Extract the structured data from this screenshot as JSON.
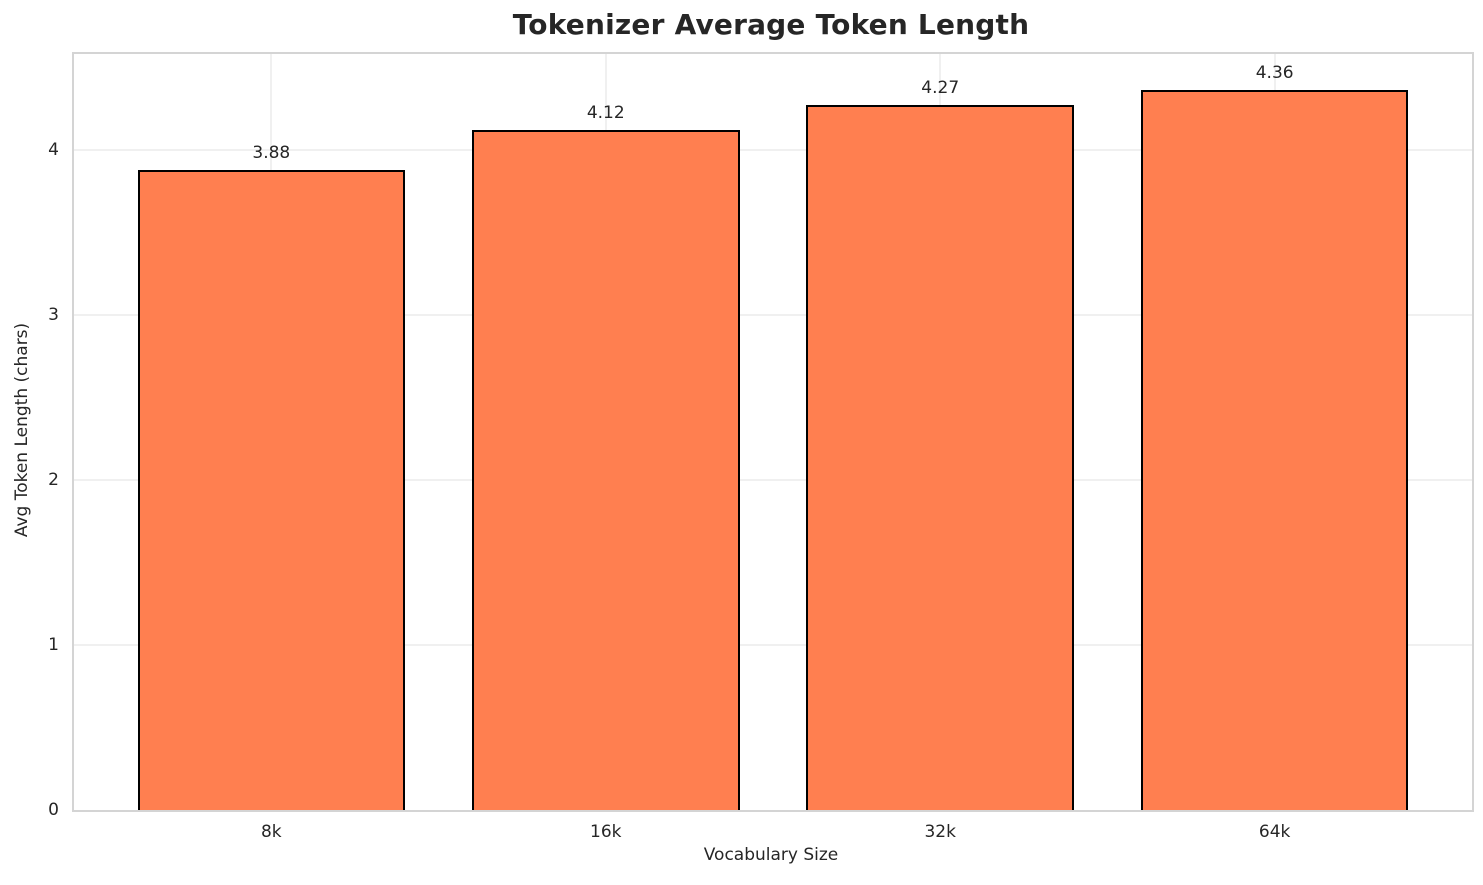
{
  "chart_data": {
    "type": "bar",
    "title": "Tokenizer Average Token Length",
    "xlabel": "Vocabulary Size",
    "ylabel": "Avg Token Length (chars)",
    "categories": [
      "8k",
      "16k",
      "32k",
      "64k"
    ],
    "values": [
      3.88,
      4.12,
      4.27,
      4.36
    ],
    "value_labels": [
      "3.88",
      "4.12",
      "4.27",
      "4.36"
    ],
    "yticks": [
      0,
      1,
      2,
      3,
      4
    ],
    "ylim": [
      0,
      4.58
    ],
    "bar_width_frac": 0.8,
    "x_margin_units": 0.59,
    "grid": {
      "horizontal": true,
      "vertical": true
    },
    "legend": "none",
    "colors": {
      "bar_fill": "#ff7f50",
      "bar_edge": "#000000",
      "grid_line": "#f0f0f0",
      "spine": "#d4d4d4",
      "text": "#262626",
      "background": "#ffffff"
    }
  }
}
